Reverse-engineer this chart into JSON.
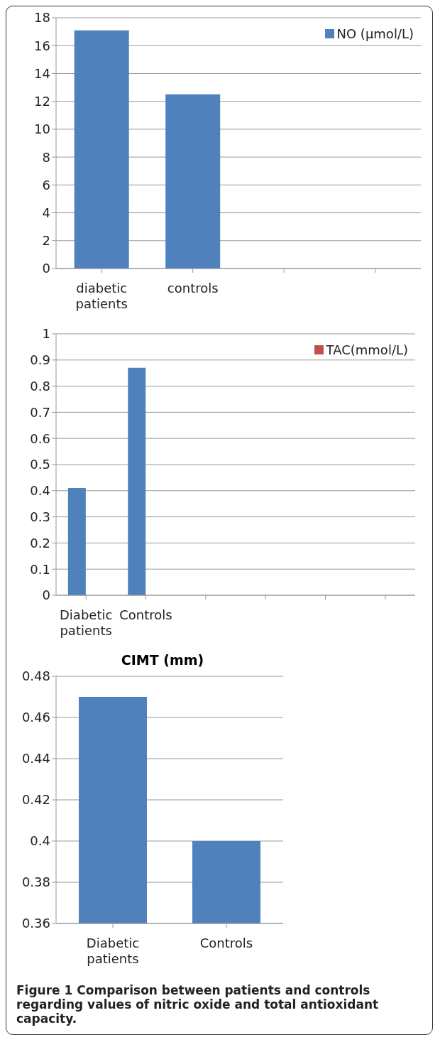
{
  "chart_data": [
    {
      "type": "bar",
      "categories": [
        "diabetic patients",
        "controls",
        null,
        null
      ],
      "series": [
        {
          "name": "NO (µmol/L)",
          "color": "#4f81bd",
          "values": [
            17.1,
            12.5,
            null,
            null
          ]
        }
      ],
      "ylim": [
        0,
        18
      ],
      "yticks": [
        0,
        2,
        4,
        6,
        8,
        10,
        12,
        14,
        16,
        18
      ],
      "grid": "y",
      "legend": "top right"
    },
    {
      "type": "bar",
      "categories": [
        "Diabetic patients",
        "Controls",
        null,
        null,
        null,
        null
      ],
      "series": [
        {
          "color": "#4f81bd",
          "values": [
            0.41,
            0.87,
            null,
            null,
            null,
            null
          ]
        },
        {
          "name": "TAC(mmol/L)",
          "color": "#c0504d",
          "values": [
            null,
            null,
            null,
            null,
            null,
            null
          ]
        }
      ],
      "ylim": [
        0,
        1
      ],
      "yticks": [
        0,
        0.1,
        0.2,
        0.3,
        0.4,
        0.5,
        0.6,
        0.7,
        0.8,
        0.9,
        1
      ],
      "grid": "y",
      "legend": "top right"
    },
    {
      "type": "bar",
      "title": "CIMT (mm)",
      "categories": [
        "Diabetic patients",
        "Controls"
      ],
      "series": [
        {
          "color": "#4f81bd",
          "values": [
            0.47,
            0.4
          ]
        }
      ],
      "ylim": [
        0.36,
        0.48
      ],
      "yticks": [
        0.36,
        0.38,
        0.4,
        0.42,
        0.44,
        0.46,
        0.48
      ],
      "grid": "y",
      "annotations": [
        "Figure 1 Comparison between patients and controls regarding values of nitric oxide and total antioxidant capacity."
      ]
    }
  ]
}
